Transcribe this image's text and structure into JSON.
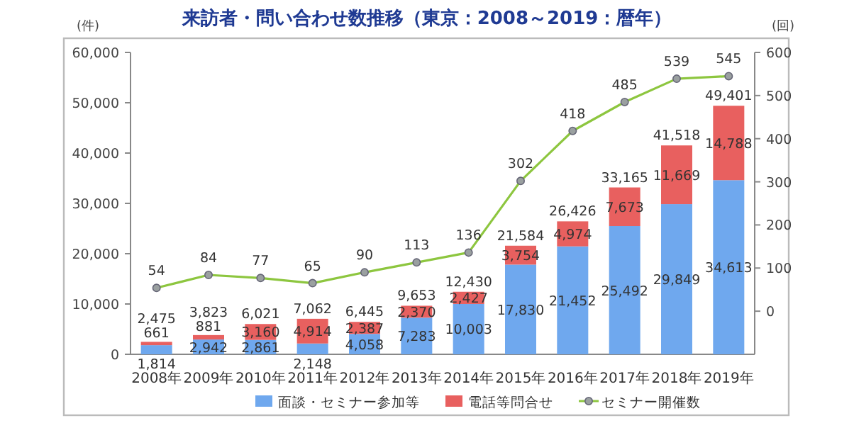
{
  "chart_data": {
    "type": "bar",
    "stacked": true,
    "title": "来訪者・問い合わせ数推移（東京：2008～2019：暦年）",
    "ylabel": "(件)",
    "y2label": "(回)",
    "categories": [
      "2008年",
      "2009年",
      "2010年",
      "2011年",
      "2012年",
      "2013年",
      "2014年",
      "2015年",
      "2016年",
      "2017年",
      "2018年",
      "2019年"
    ],
    "series": [
      {
        "name": "面談・セミナー参加等",
        "color": "#6fa8ee",
        "values": [
          1814,
          2942,
          2861,
          2148,
          4058,
          7283,
          10003,
          17830,
          21452,
          25492,
          29849,
          34613
        ],
        "value_labels": [
          "1,814",
          "2,942",
          "2,861",
          "2,148",
          "4,058",
          "7,283",
          "10,003",
          "17,830",
          "21,452",
          "25,492",
          "29,849",
          "34,613"
        ]
      },
      {
        "name": "電話等問合せ",
        "color": "#e8605f",
        "values": [
          661,
          881,
          3160,
          4914,
          2387,
          2370,
          2427,
          3754,
          4974,
          7673,
          11669,
          14788
        ],
        "value_labels": [
          "661",
          "881",
          "3,160",
          "4,914",
          "2,387",
          "2,370",
          "2,427",
          "3,754",
          "4,974",
          "7,673",
          "11,669",
          "14,788"
        ]
      },
      {
        "name": "セミナー開催数",
        "type": "line",
        "axis": "y2",
        "color": "#8dc63f",
        "marker": "circle",
        "values": [
          54,
          84,
          77,
          65,
          90,
          113,
          136,
          302,
          418,
          485,
          539,
          545
        ],
        "value_labels": [
          "54",
          "84",
          "77",
          "65",
          "90",
          "113",
          "136",
          "302",
          "418",
          "485",
          "539",
          "545"
        ]
      }
    ],
    "totals": [
      "2,475",
      "3,823",
      "6,021",
      "7,062",
      "6,445",
      "9,653",
      "12,430",
      "21,584",
      "26,426",
      "33,165",
      "41,518",
      "49,401"
    ],
    "ylim": [
      0,
      60000
    ],
    "yticks": [
      0,
      {
        "value": 10000,
        "label": "10,000"
      },
      {
        "value": 20000,
        "label": "20,000"
      },
      {
        "value": 30000,
        "label": "30,000"
      },
      {
        "value": 40000,
        "label": "40,000"
      },
      {
        "value": 50000,
        "label": "50,000"
      },
      {
        "value": 60000,
        "label": "60,000"
      }
    ],
    "y2lim": [
      -100,
      600
    ],
    "y2ticks": [
      0,
      100,
      200,
      300,
      400,
      500,
      600
    ],
    "grid": false,
    "legend": "bottom"
  }
}
